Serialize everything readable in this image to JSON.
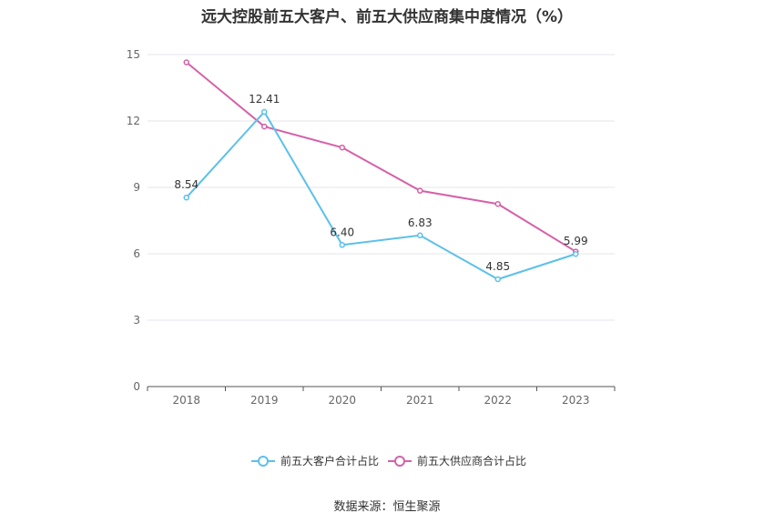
{
  "chart_data": {
    "type": "line",
    "title": "远大控股前五大客户、前五大供应商集中度情况（%）",
    "categories": [
      "2018",
      "2019",
      "2020",
      "2021",
      "2022",
      "2023"
    ],
    "ylim": [
      0,
      15
    ],
    "yticks": [
      0,
      3,
      6,
      9,
      12,
      15
    ],
    "grid": true,
    "legend_position": "bottom",
    "series": [
      {
        "name": "前五大客户合计占比",
        "color": "#5bc0eb",
        "values": [
          8.54,
          12.41,
          6.4,
          6.83,
          4.85,
          5.99
        ],
        "labels": [
          "8.54",
          "12.41",
          "6.40",
          "6.83",
          "4.85",
          "5.99"
        ]
      },
      {
        "name": "前五大供应商合计占比",
        "color": "#d660a8",
        "values": [
          14.65,
          11.75,
          10.8,
          8.85,
          8.25,
          6.1
        ]
      }
    ]
  },
  "source_text": "数据来源：恒生聚源"
}
